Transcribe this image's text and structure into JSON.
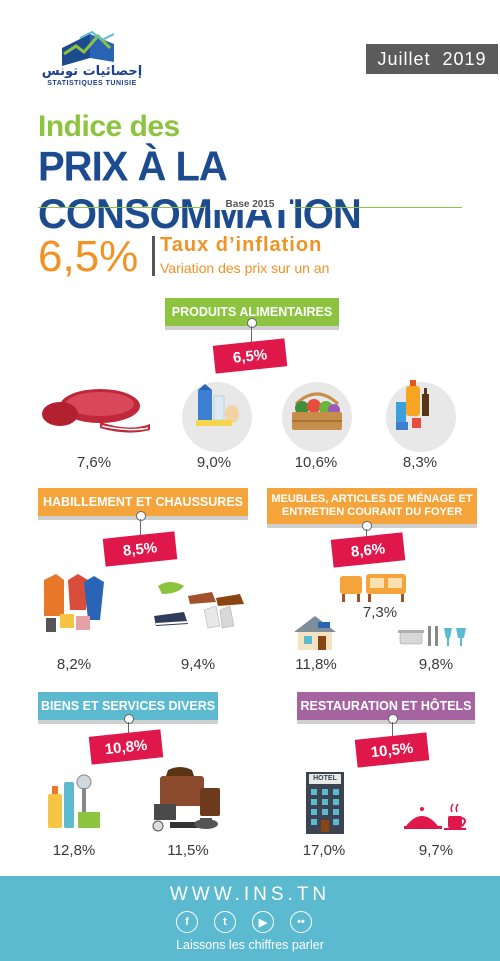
{
  "header": {
    "logo_arabic": "إحصائيات تونس",
    "logo_french": "STATISTIQUES TUNISIE",
    "month": "Juillet",
    "year": "2019"
  },
  "title": {
    "line1": "Indice des",
    "line2": "PRIX À LA CONSOMMATION",
    "base": "Base 2015"
  },
  "inflation": {
    "value": "6,5%",
    "label": "Taux d’inflation",
    "sublabel": "Variation des prix sur un an"
  },
  "sections": {
    "alimentaires": {
      "label": "PRODUITS ALIMENTAIRES",
      "value": "6,5%",
      "items": [
        "7,6%",
        "9,0%",
        "10,6%",
        "8,3%"
      ]
    },
    "habillement": {
      "label": "HABILLEMENT ET CHAUSSURES",
      "value": "8,5%",
      "items": [
        "8,2%",
        "9,4%"
      ]
    },
    "meubles": {
      "label": "MEUBLES, ARTICLES DE MÉNAGE ET ENTRETIEN COURANT DU FOYER",
      "value": "8,6%",
      "items": [
        "7,3%",
        "11,8%",
        "9,8%"
      ]
    },
    "biens": {
      "label": "BIENS ET SERVICES DIVERS",
      "value": "10,8%",
      "items": [
        "12,8%",
        "11,5%"
      ]
    },
    "restauration": {
      "label": "RESTAURATION ET HÔTELS",
      "value": "10,5%",
      "items": [
        "17,0%",
        "9,7%"
      ],
      "hotel_sign": "HOTEL"
    }
  },
  "footer": {
    "website": "WWW.INS.TN",
    "slogan": "Laissons les chiffres parler",
    "social": [
      "facebook-icon",
      "twitter-icon",
      "youtube-icon",
      "flickr-icon"
    ]
  },
  "colors": {
    "green": "#8cc43f",
    "navy": "#1d4b8f",
    "orange": "#f29223",
    "red_tag": "#e0174a",
    "teal": "#5bbad0",
    "purple": "#a5649f"
  }
}
